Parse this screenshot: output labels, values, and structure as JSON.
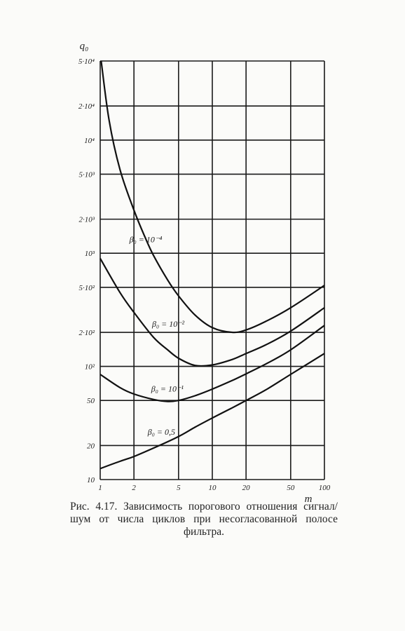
{
  "chart_data": {
    "type": "line",
    "x_scale": "log",
    "y_scale": "log",
    "xlim": [
      1,
      100
    ],
    "ylim": [
      10,
      50000
    ],
    "xlabel": "m",
    "ylabel": "q₀",
    "grid": true,
    "x_ticks": [
      {
        "v": 1,
        "label": "1"
      },
      {
        "v": 2,
        "label": "2"
      },
      {
        "v": 5,
        "label": "5"
      },
      {
        "v": 10,
        "label": "10"
      },
      {
        "v": 20,
        "label": "20"
      },
      {
        "v": 50,
        "label": "50"
      },
      {
        "v": 100,
        "label": "100"
      }
    ],
    "y_ticks": [
      {
        "v": 10,
        "label": "10"
      },
      {
        "v": 20,
        "label": "20"
      },
      {
        "v": 50,
        "label": "50"
      },
      {
        "v": 100,
        "label": "10²"
      },
      {
        "v": 200,
        "label": "2·10²"
      },
      {
        "v": 500,
        "label": "5·10²"
      },
      {
        "v": 1000,
        "label": "10³"
      },
      {
        "v": 2000,
        "label": "2·10³"
      },
      {
        "v": 5000,
        "label": "5·10³"
      },
      {
        "v": 10000,
        "label": "10⁴"
      },
      {
        "v": 20000,
        "label": "2·10⁴"
      },
      {
        "v": 50000,
        "label": "5·10⁴"
      }
    ],
    "series": [
      {
        "name": "β₀ = 10⁻⁴",
        "points": [
          [
            1.02,
            50000
          ],
          [
            1.2,
            15000
          ],
          [
            1.5,
            5500
          ],
          [
            2,
            2400
          ],
          [
            2.5,
            1400
          ],
          [
            3,
            950
          ],
          [
            4,
            580
          ],
          [
            5,
            420
          ],
          [
            7,
            285
          ],
          [
            10,
            220
          ],
          [
            15,
            200
          ],
          [
            20,
            210
          ],
          [
            30,
            250
          ],
          [
            50,
            330
          ],
          [
            100,
            520
          ]
        ]
      },
      {
        "name": "β₀ = 10⁻²",
        "points": [
          [
            1,
            900
          ],
          [
            1.5,
            450
          ],
          [
            2,
            300
          ],
          [
            3,
            180
          ],
          [
            4,
            140
          ],
          [
            5,
            118
          ],
          [
            7,
            102
          ],
          [
            10,
            103
          ],
          [
            15,
            115
          ],
          [
            20,
            130
          ],
          [
            30,
            155
          ],
          [
            50,
            205
          ],
          [
            100,
            330
          ]
        ]
      },
      {
        "name": "β₀ = 10⁻¹",
        "points": [
          [
            1,
            85
          ],
          [
            1.5,
            65
          ],
          [
            2,
            57
          ],
          [
            3,
            51
          ],
          [
            4,
            49
          ],
          [
            5,
            50
          ],
          [
            7,
            55
          ],
          [
            10,
            63
          ],
          [
            15,
            75
          ],
          [
            20,
            86
          ],
          [
            30,
            105
          ],
          [
            50,
            140
          ],
          [
            100,
            230
          ]
        ]
      },
      {
        "name": "β₀ = 0,5",
        "points": [
          [
            1,
            12.5
          ],
          [
            1.5,
            14.5
          ],
          [
            2,
            16
          ],
          [
            3,
            19
          ],
          [
            5,
            24
          ],
          [
            7,
            29
          ],
          [
            10,
            35
          ],
          [
            15,
            43
          ],
          [
            20,
            50
          ],
          [
            30,
            62
          ],
          [
            50,
            85
          ],
          [
            100,
            130
          ]
        ]
      }
    ]
  },
  "caption": {
    "text": "Рис. 4.17. Зависимость порогового отношения сигнал/шум от числа циклов при несогласованной полосе фильтра."
  }
}
